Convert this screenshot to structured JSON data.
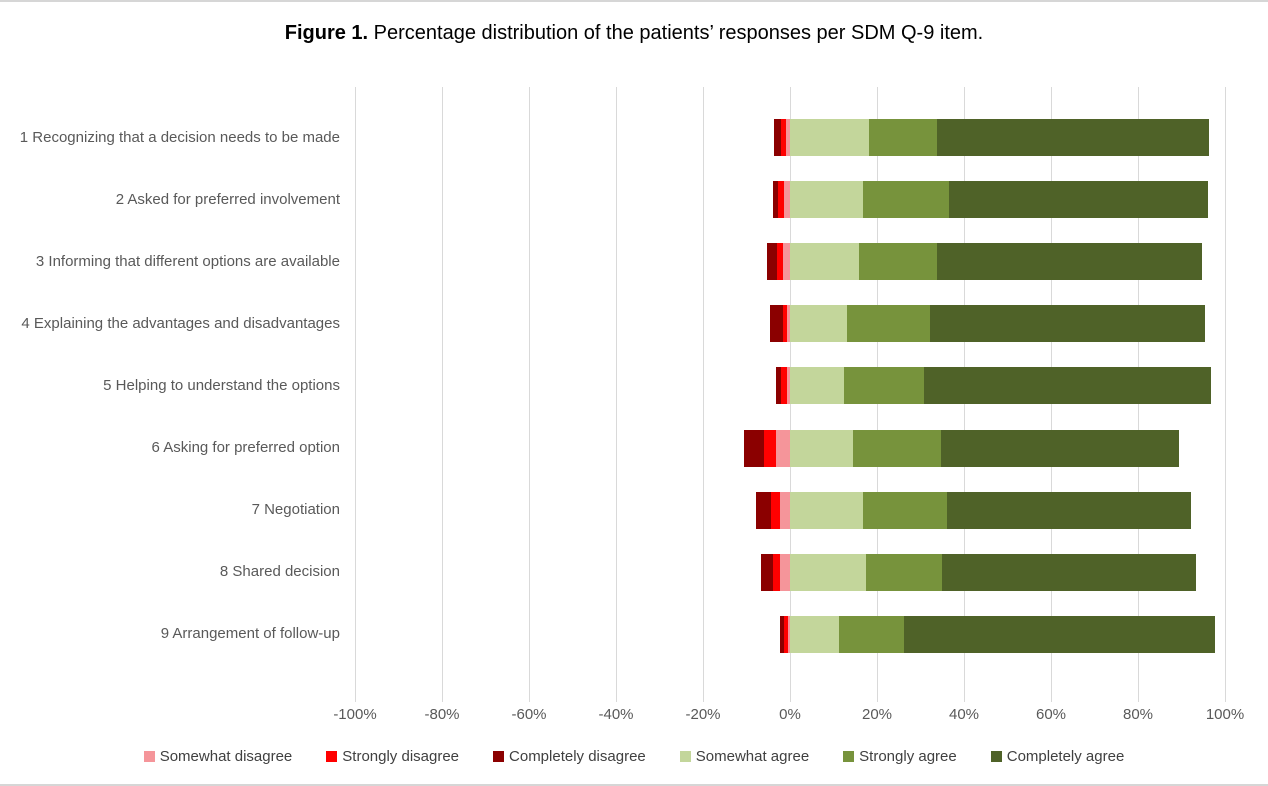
{
  "figure": {
    "title_prefix": "Figure 1.",
    "title_text": "Percentage distribution of the patients’ responses per SDM Q-9 item."
  },
  "chart_data": {
    "type": "bar",
    "variant": "horizontal-diverging-stacked",
    "title": "Figure 1. Percentage distribution of the patients’ responses per SDM Q-9 item.",
    "xlabel": "",
    "ylabel": "",
    "xlim": [
      -100,
      100
    ],
    "grid": true,
    "legend_position": "bottom",
    "x_ticks": [
      "-100%",
      "-80%",
      "-60%",
      "-40%",
      "-20%",
      "0%",
      "20%",
      "40%",
      "60%",
      "80%",
      "100%"
    ],
    "categories": [
      "1 Recognizing that a decision needs to be made",
      "2 Asked for preferred involvement",
      "3 Informing that different options are available",
      "4 Explaining the advantages and disadvantages",
      "5 Helping to understand the options",
      "6 Asking for preferred option",
      "7 Negotiation",
      "8 Shared decision",
      "9 Arrangement of follow-up"
    ],
    "series": [
      {
        "name": "Somewhat disagree",
        "color": "#F5959A",
        "sign": "negative",
        "values": [
          1.0,
          1.3,
          1.5,
          0.8,
          0.6,
          3.2,
          2.3,
          2.2,
          0.5
        ]
      },
      {
        "name": "Strongly disagree",
        "color": "#FF0000",
        "sign": "negative",
        "values": [
          1.1,
          1.4,
          1.5,
          0.8,
          1.5,
          2.7,
          2.1,
          1.7,
          0.9
        ]
      },
      {
        "name": "Completely disagree",
        "color": "#8B0000",
        "sign": "negative",
        "values": [
          1.5,
          1.3,
          2.3,
          2.9,
          1.2,
          4.6,
          3.4,
          2.7,
          0.8
        ]
      },
      {
        "name": "Somewhat agree",
        "color": "#C3D69B",
        "sign": "positive",
        "values": [
          18.2,
          16.7,
          15.9,
          13.2,
          12.4,
          14.4,
          16.7,
          17.4,
          11.3
        ]
      },
      {
        "name": "Strongly agree",
        "color": "#77933C",
        "sign": "positive",
        "values": [
          15.6,
          19.9,
          17.8,
          19.0,
          18.4,
          20.4,
          19.3,
          17.5,
          14.9
        ]
      },
      {
        "name": "Completely agree",
        "color": "#4F6228",
        "sign": "positive",
        "values": [
          62.6,
          59.4,
          61.0,
          63.3,
          65.9,
          54.7,
          56.2,
          58.5,
          71.6
        ]
      }
    ],
    "colors": {
      "gridline": "#D9D9D9",
      "axis_text": "#595959",
      "legend_text": "#404040",
      "frame_border": "#D6D6D6"
    }
  }
}
